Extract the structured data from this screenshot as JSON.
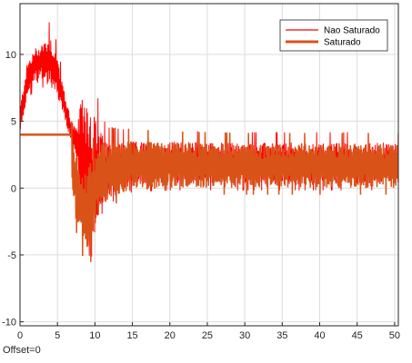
{
  "chart_data": {
    "type": "line",
    "title": "",
    "xlabel": "",
    "ylabel": "",
    "xlim": [
      0,
      50.5
    ],
    "ylim": [
      -10.3,
      13.8
    ],
    "x_ticks": [
      0,
      5,
      10,
      15,
      20,
      25,
      30,
      35,
      40,
      45,
      50
    ],
    "y_ticks": [
      -10,
      -5,
      0,
      5,
      10
    ],
    "grid": true,
    "legend_position": "top-right",
    "series": [
      {
        "name": "Nao Saturado",
        "color": "#ff0000",
        "style": "thin-line",
        "envelope": {
          "x": [
            0,
            0.5,
            1,
            2,
            3,
            4,
            5,
            5.5,
            6,
            6.5,
            7,
            7.5,
            8,
            8.5,
            9,
            9.5,
            10,
            10.5,
            11,
            11.5,
            12,
            13,
            15,
            20,
            30,
            40,
            50.5
          ],
          "lower": [
            4.0,
            5.5,
            7.0,
            7.8,
            8.0,
            7.6,
            6.8,
            6.0,
            5.0,
            4.0,
            3.0,
            2.0,
            0.0,
            -3.5,
            -5.5,
            -6.0,
            -5.0,
            -3.0,
            -2.0,
            -1.0,
            -0.5,
            -0.3,
            0.2,
            0.3,
            0.3,
            0.3,
            0.3
          ],
          "upper": [
            6.0,
            8.0,
            9.5,
            10.5,
            11.0,
            11.5,
            10.0,
            8.5,
            7.0,
            6.0,
            5.0,
            4.5,
            6.0,
            7.5,
            7.5,
            6.5,
            5.5,
            4.5,
            4.0,
            3.5,
            3.5,
            3.5,
            3.5,
            3.5,
            3.4,
            3.4,
            3.4
          ],
          "min_y": -7.9,
          "max_y": 11.7
        }
      },
      {
        "name": "Saturado",
        "color": "#d95319",
        "style": "thick-line",
        "constant_segment": {
          "x": [
            0,
            6.9
          ],
          "y": 4.0
        },
        "envelope": {
          "x": [
            6.9,
            7.0,
            7.5,
            8.0,
            8.5,
            9.0,
            9.5,
            10.0,
            10.5,
            11.0,
            11.5,
            12.0,
            13.0,
            15.0,
            20.0,
            30.0,
            40.0,
            50.5
          ],
          "lower": [
            0.0,
            -1.0,
            -2.5,
            -3.5,
            -4.5,
            -5.0,
            -4.5,
            -3.0,
            -2.0,
            -1.5,
            -1.0,
            -0.8,
            -0.5,
            -0.2,
            0.0,
            0.0,
            0.0,
            0.0
          ],
          "upper": [
            4.0,
            3.5,
            2.5,
            2.0,
            1.5,
            1.5,
            2.0,
            2.5,
            3.0,
            3.5,
            3.5,
            3.5,
            3.5,
            3.5,
            3.4,
            3.3,
            3.3,
            3.3
          ]
        }
      }
    ]
  },
  "footer": {
    "offset_label": "Offset=0"
  }
}
